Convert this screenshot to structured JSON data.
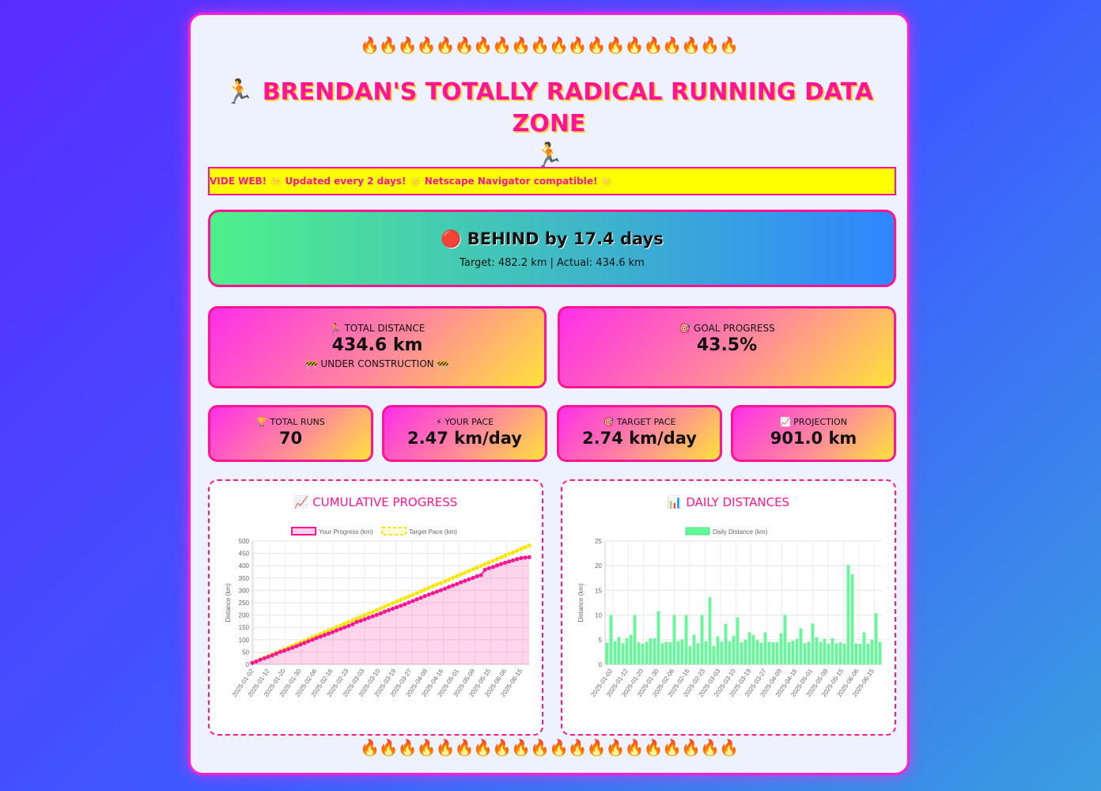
{
  "header": {
    "fire_row": "🔥🔥🔥🔥🔥🔥🔥🔥🔥🔥🔥🔥🔥🔥🔥🔥🔥🔥🔥🔥",
    "runner_icon": "🏃",
    "title": "BRENDAN'S TOTALLY RADICAL RUNNING DATA ZONE"
  },
  "marquee": {
    "text": "VIDE WEB! 🌟 Updated every 2 days! 🌟 Netscape Navigator compatible! 🌟"
  },
  "status": {
    "icon": "🔴",
    "headline": "BEHIND by 17.4 days",
    "detail": "Target: 482.2 km | Actual: 434.6 km"
  },
  "stats": {
    "total_distance": {
      "icon": "🏃",
      "label": "TOTAL DISTANCE",
      "value": "434.6 km",
      "note": "🚧 UNDER CONSTRUCTION 🚧"
    },
    "goal_progress": {
      "icon": "🎯",
      "label": "GOAL PROGRESS",
      "value": "43.5%"
    },
    "total_runs": {
      "icon": "🏆",
      "label": "TOTAL RUNS",
      "value": "70"
    },
    "your_pace": {
      "icon": "⚡",
      "label": "YOUR PACE",
      "value": "2.47 km/day"
    },
    "target_pace": {
      "icon": "🎯",
      "label": "TARGET PACE",
      "value": "2.74 km/day"
    },
    "projection": {
      "icon": "📈",
      "label": "PROJECTION",
      "value": "901.0 km"
    }
  },
  "footer": {
    "fire_row": "🔥🔥🔥🔥🔥🔥🔥🔥🔥🔥🔥🔥🔥🔥🔥🔥🔥🔥🔥🔥"
  },
  "chart_data": [
    {
      "type": "line",
      "title": "📈 CUMULATIVE PROGRESS",
      "ylabel": "Distance (km)",
      "xlabel": "",
      "ylim": [
        0,
        500
      ],
      "yticks": [
        0,
        50,
        100,
        150,
        200,
        250,
        300,
        350,
        400,
        450,
        500
      ],
      "grid": true,
      "legend": "top",
      "x_tick_labels": [
        "2025-01-02",
        "2025-01-12",
        "2025-01-20",
        "2025-01-30",
        "2025-02-06",
        "2025-02-16",
        "2025-02-23",
        "2025-03-03",
        "2025-03-10",
        "2025-03-19",
        "2025-03-27",
        "2025-04-09",
        "2025-04-16",
        "2025-05-01",
        "2025-05-09",
        "2025-05-15",
        "2025-06-06",
        "2025-06-15"
      ],
      "series": [
        {
          "name": "Your Progress (km)",
          "color": "#ff1493",
          "values": [
            6,
            12,
            19,
            25,
            31,
            37,
            44,
            51,
            56,
            62,
            68,
            74,
            81,
            87,
            94,
            100,
            107,
            113,
            119,
            125,
            131,
            138,
            144,
            150,
            156,
            163,
            172,
            177,
            183,
            189,
            195,
            201,
            207,
            214,
            220,
            226,
            232,
            238,
            244,
            251,
            257,
            264,
            270,
            277,
            283,
            289,
            295,
            301,
            307,
            314,
            320,
            326,
            333,
            339,
            345,
            351,
            357,
            362,
            384,
            390,
            395,
            401,
            407,
            412,
            417,
            422,
            427,
            431,
            433,
            434.6
          ]
        },
        {
          "name": "Target Pace (km)",
          "color": "#ffe600",
          "values": [
            7,
            14,
            21,
            27,
            34,
            41,
            48,
            55,
            62,
            69,
            76,
            83,
            89,
            96,
            103,
            110,
            117,
            124,
            131,
            138,
            145,
            151,
            158,
            165,
            172,
            179,
            186,
            193,
            200,
            207,
            213,
            220,
            227,
            234,
            241,
            248,
            255,
            262,
            269,
            275,
            282,
            289,
            296,
            303,
            310,
            317,
            324,
            330,
            337,
            344,
            351,
            358,
            365,
            372,
            379,
            386,
            392,
            399,
            406,
            413,
            420,
            427,
            434,
            441,
            448,
            454,
            461,
            468,
            475,
            482.2
          ]
        }
      ]
    },
    {
      "type": "bar",
      "title": "📊 DAILY DISTANCES",
      "ylabel": "Distance (km)",
      "xlabel": "",
      "ylim": [
        0,
        25
      ],
      "yticks": [
        0,
        5,
        10,
        15,
        20,
        25
      ],
      "grid": true,
      "legend": "top",
      "color": "#66f79a",
      "x_tick_labels": [
        "2025-01-02",
        "2025-01-12",
        "2025-01-20",
        "2025-01-30",
        "2025-02-06",
        "2025-02-16",
        "2025-02-23",
        "2025-03-03",
        "2025-03-10",
        "2025-03-19",
        "2025-03-27",
        "2025-04-09",
        "2025-04-16",
        "2025-05-01",
        "2025-05-09",
        "2025-05-15",
        "2025-06-06",
        "2025-06-15"
      ],
      "series": [
        {
          "name": "Daily Distance (km)",
          "values": [
            4.4,
            10,
            4.7,
            5.6,
            4.3,
            5.3,
            6,
            10,
            4.5,
            4.2,
            4.6,
            5.3,
            5.3,
            10.8,
            4.3,
            4.6,
            4.5,
            10,
            4.7,
            5.1,
            10,
            3.7,
            6,
            4.3,
            10,
            4.7,
            13.6,
            3.7,
            5.7,
            4.6,
            8.2,
            4.7,
            5.8,
            9.5,
            4.5,
            5,
            6.5,
            6,
            5,
            4.4,
            6.5,
            4.6,
            4.5,
            4.5,
            6.3,
            10,
            4.5,
            4.8,
            5.2,
            7.3,
            4.3,
            4.6,
            8.3,
            5.5,
            4.6,
            5.2,
            4.2,
            5.3,
            4.3,
            4.5,
            4.2,
            20.2,
            18.3,
            4.3,
            4.2,
            6.5,
            4.2,
            5,
            10.4,
            4.6
          ]
        }
      ]
    }
  ]
}
